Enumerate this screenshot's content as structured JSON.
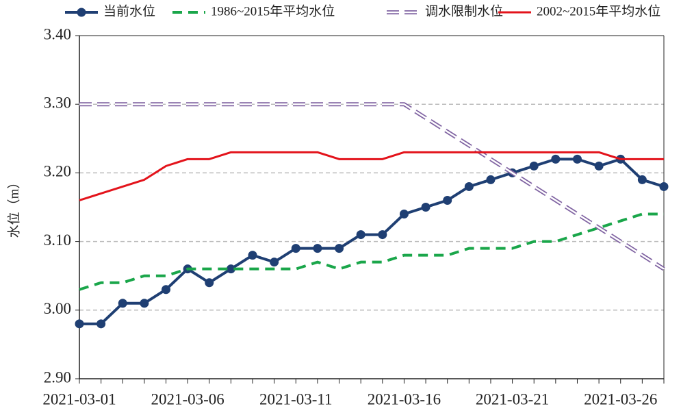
{
  "chart_data": {
    "type": "line",
    "ylabel": "水位（m）",
    "categories": [
      "2021-03-01",
      null,
      null,
      null,
      null,
      "2021-03-06",
      null,
      null,
      null,
      null,
      "2021-03-11",
      null,
      null,
      null,
      null,
      "2021-03-16",
      null,
      null,
      null,
      null,
      "2021-03-21",
      null,
      null,
      null,
      null,
      "2021-03-26",
      null,
      null
    ],
    "series": [
      {
        "name": "当前水位",
        "color": "#1f3f73",
        "style": "marker",
        "values": [
          2.98,
          2.98,
          3.01,
          3.01,
          3.03,
          3.06,
          3.04,
          3.06,
          3.08,
          3.07,
          3.09,
          3.09,
          3.09,
          3.11,
          3.11,
          3.14,
          3.15,
          3.16,
          3.18,
          3.19,
          3.2,
          3.21,
          3.22,
          3.22,
          3.21,
          3.22,
          3.19,
          3.18
        ]
      },
      {
        "name": "1986~2015年平均水位",
        "color": "#1aa64a",
        "style": "dash",
        "values": [
          3.03,
          3.04,
          3.04,
          3.05,
          3.05,
          3.06,
          3.06,
          3.06,
          3.06,
          3.06,
          3.06,
          3.07,
          3.06,
          3.07,
          3.07,
          3.08,
          3.08,
          3.08,
          3.09,
          3.09,
          3.09,
          3.1,
          3.1,
          3.11,
          3.12,
          3.13,
          3.14,
          3.14
        ]
      },
      {
        "name": "调水限制水位",
        "color": "#8064a2",
        "style": "hollow-dash",
        "values": [
          3.3,
          3.3,
          3.3,
          3.3,
          3.3,
          3.3,
          3.3,
          3.3,
          3.3,
          3.3,
          3.3,
          3.3,
          3.3,
          3.3,
          3.3,
          3.3,
          3.28,
          3.26,
          3.24,
          3.22,
          3.2,
          3.18,
          3.16,
          3.14,
          3.12,
          3.1,
          3.08,
          3.06
        ]
      },
      {
        "name": "2002~2015年平均水位",
        "color": "#e3131b",
        "style": "solid",
        "values": [
          3.16,
          3.17,
          3.18,
          3.19,
          3.21,
          3.22,
          3.22,
          3.23,
          3.23,
          3.23,
          3.23,
          3.23,
          3.22,
          3.22,
          3.22,
          3.23,
          3.23,
          3.23,
          3.23,
          3.23,
          3.23,
          3.23,
          3.23,
          3.23,
          3.23,
          3.22,
          3.22,
          3.22
        ]
      }
    ],
    "ylim": [
      2.9,
      3.4
    ],
    "yticks": [
      {
        "value": 2.9,
        "label": "2.90"
      },
      {
        "value": 3.0,
        "label": "3.00"
      },
      {
        "value": 3.1,
        "label": "3.10"
      },
      {
        "value": 3.2,
        "label": "3.20"
      },
      {
        "value": 3.3,
        "label": "3.30"
      },
      {
        "value": 3.4,
        "label": "3.40"
      }
    ],
    "grid": true,
    "legend": "top"
  }
}
